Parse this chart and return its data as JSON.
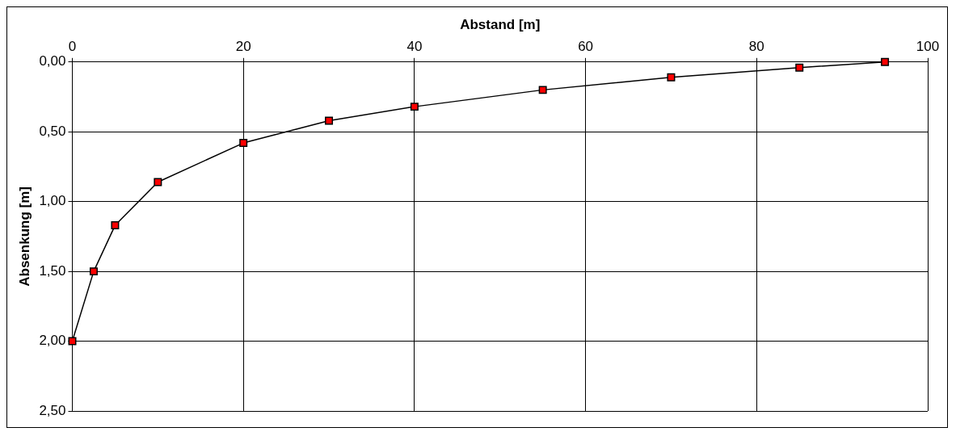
{
  "chart_data": {
    "type": "line",
    "xlabel": "Abstand [m]",
    "ylabel": "Absenkung [m]",
    "x": [
      0,
      2.5,
      5,
      10,
      20,
      30,
      40,
      55,
      70,
      85,
      95
    ],
    "series": [
      {
        "color": "#000000",
        "colors": [
          "#ff0000",
          "#ff0000",
          "#ff0000",
          "#ff0000",
          "#ff0000",
          "#ff0000",
          "#ff0000",
          "#ff0000",
          "#ff0000",
          "#ff0000",
          "#ff0000"
        ],
        "values": [
          2.0,
          1.5,
          1.17,
          0.86,
          0.58,
          0.42,
          0.32,
          0.2,
          0.11,
          0.04,
          0.0
        ]
      }
    ],
    "xlim": [
      0,
      100
    ],
    "xticks": [
      0,
      20,
      40,
      60,
      80,
      100
    ],
    "ylim": [
      2.5,
      0
    ],
    "yticks": [
      {
        "value": 0,
        "label": "0,00"
      },
      {
        "value": 0.5,
        "label": "0,50"
      },
      {
        "value": 1,
        "label": "1,00"
      },
      {
        "value": 1.5,
        "label": "1,50"
      },
      {
        "value": 2,
        "label": "2,00"
      },
      {
        "value": 2.5,
        "label": "2,50"
      }
    ],
    "grid": true,
    "legend": false,
    "marker": "square",
    "line_style": "solid"
  }
}
